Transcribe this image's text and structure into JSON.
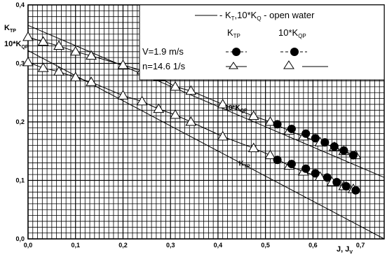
{
  "chart_data": {
    "type": "line",
    "x_label_main": "J, J",
    "x_label_sub": "V",
    "y_label_top_main": "K",
    "y_label_top_sub": "TP",
    "y_label_bottom_main": "10*K",
    "y_label_bottom_sub": "QP",
    "xlim": [
      0,
      0.75
    ],
    "ylim": [
      0,
      0.4
    ],
    "x_ticks": [
      "0,0",
      "0,1",
      "0,2",
      "0,3",
      "0,4",
      "0,5",
      "0,6",
      "0,7"
    ],
    "x_tick_values": [
      0,
      0.1,
      0.2,
      0.3,
      0.4,
      0.5,
      0.6,
      0.7
    ],
    "y_ticks": [
      "0,0",
      "0,1",
      "0,2",
      "0,3",
      "0,4"
    ],
    "y_tick_values": [
      0,
      0.1,
      0.2,
      0.3,
      0.4
    ],
    "grid": true,
    "legend": {
      "line1_a": "- K",
      "line1_a_sub": "T",
      "line1_b": ",10*K",
      "line1_b_sub": "Q",
      "line1_c": " - open water",
      "col1_main": "K",
      "col1_sub": "TP",
      "col2_main": "10*K",
      "col2_sub": "QP",
      "cond1": "V=1.9 m/s",
      "cond2": "n=14.6 1/s"
    },
    "annotations": [
      {
        "main": "10*K",
        "sub": "QP",
        "x": 0.47,
        "y": 0.225
      },
      {
        "main": "K",
        "sub": "TP",
        "x": 0.5,
        "y": 0.13
      }
    ],
    "series": [
      {
        "id": "kq_open",
        "style": "line",
        "x": [
          0,
          0.75
        ],
        "y": [
          0.365,
          0.105
        ]
      },
      {
        "id": "kt_open",
        "style": "line",
        "x": [
          0,
          0.75
        ],
        "y": [
          0.322,
          0.0
        ]
      },
      {
        "id": "kq_tri",
        "style": "line-triangle",
        "x": [
          0.0,
          0.032,
          0.065,
          0.1,
          0.133,
          0.2,
          0.24,
          0.275,
          0.31,
          0.343,
          0.41,
          0.475,
          0.51,
          0.55,
          0.58,
          0.615,
          0.645,
          0.665,
          0.69
        ],
        "y": [
          0.345,
          0.337,
          0.33,
          0.32,
          0.313,
          0.297,
          0.288,
          0.277,
          0.26,
          0.253,
          0.23,
          0.21,
          0.2,
          0.185,
          0.175,
          0.165,
          0.157,
          0.15,
          0.143
        ]
      },
      {
        "id": "kt_tri",
        "style": "line-triangle",
        "x": [
          0.0,
          0.032,
          0.065,
          0.1,
          0.133,
          0.2,
          0.24,
          0.275,
          0.31,
          0.343,
          0.41,
          0.475,
          0.51,
          0.55,
          0.58,
          0.615,
          0.64,
          0.665,
          0.685
        ],
        "y": [
          0.302,
          0.292,
          0.286,
          0.276,
          0.268,
          0.245,
          0.235,
          0.222,
          0.212,
          0.2,
          0.175,
          0.155,
          0.143,
          0.125,
          0.115,
          0.106,
          0.097,
          0.09,
          0.085
        ]
      },
      {
        "id": "kq_dot",
        "style": "dot",
        "x": [
          0.525,
          0.555,
          0.585,
          0.605,
          0.625,
          0.645,
          0.665,
          0.685
        ],
        "y": [
          0.196,
          0.188,
          0.18,
          0.172,
          0.165,
          0.158,
          0.151,
          0.143
        ]
      },
      {
        "id": "kt_dot",
        "style": "dot",
        "x": [
          0.525,
          0.555,
          0.585,
          0.605,
          0.63,
          0.65,
          0.67,
          0.69
        ],
        "y": [
          0.135,
          0.128,
          0.12,
          0.112,
          0.105,
          0.097,
          0.09,
          0.083
        ]
      }
    ]
  }
}
